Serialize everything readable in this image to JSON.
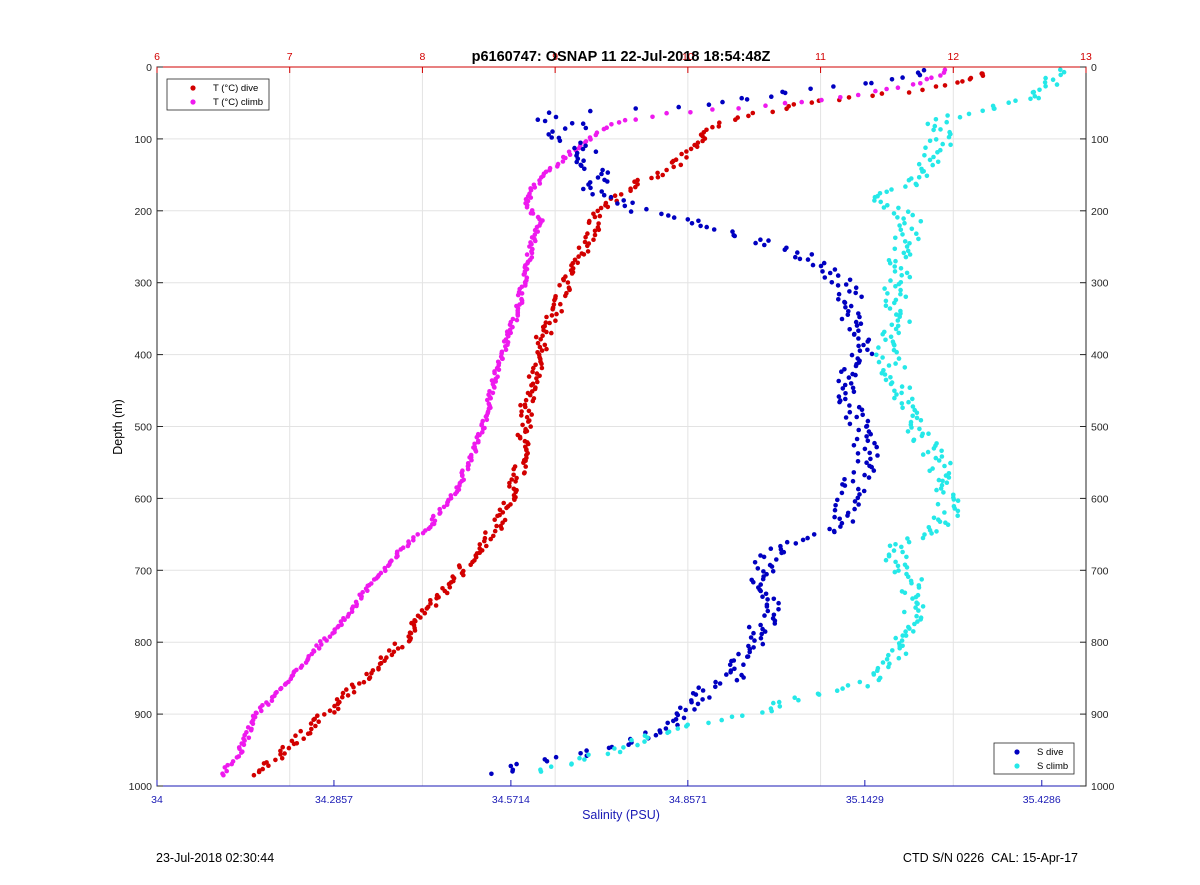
{
  "title": "p6160747: OSNAP 11 22-Jul-2018 18:54:48Z",
  "footer_left": "23-Jul-2018 02:30:44",
  "footer_right": "CTD S/N 0226  CAL: 15-Apr-17",
  "colors": {
    "t_dive": "#d20000",
    "t_climb": "#ee1aee",
    "s_dive": "#0000c0",
    "s_climb": "#25e8e8",
    "top_axis": "#d20000",
    "bottom_axis": "#1a1ab5"
  },
  "chart_data": {
    "type": "scatter",
    "title": "p6160747: OSNAP 11 22-Jul-2018 18:54:48Z",
    "ylabel": "Depth (m)",
    "ylim": [
      0,
      1000
    ],
    "y_reversed": true,
    "y_ticks": [
      "0",
      "100",
      "200",
      "300",
      "400",
      "500",
      "600",
      "700",
      "800",
      "900",
      "1000"
    ],
    "top_axis": {
      "label": "",
      "lim": [
        6,
        13
      ],
      "ticks": [
        "6",
        "7",
        "8",
        "9",
        "10",
        "11",
        "12",
        "13"
      ]
    },
    "bottom_axis": {
      "label": "Salinity (PSU)",
      "lim": [
        34,
        35.5
      ],
      "ticks": [
        "34",
        "34.2857",
        "34.5714",
        "34.8571",
        "35.1429",
        "35.4286"
      ]
    },
    "grid": true,
    "legends": [
      {
        "position": "top-left",
        "entries": [
          "T (°C) dive",
          "T (°C) climb"
        ]
      },
      {
        "position": "bottom-right",
        "entries": [
          "S dive",
          "S climb"
        ]
      }
    ],
    "series": [
      {
        "name": "T (°C) dive",
        "axis": "top",
        "points": [
          [
            12.27,
            8
          ],
          [
            12.2,
            12
          ],
          [
            12.1,
            17
          ],
          [
            11.95,
            25
          ],
          [
            11.75,
            32
          ],
          [
            11.5,
            37
          ],
          [
            11.2,
            42
          ],
          [
            10.9,
            50
          ],
          [
            10.7,
            58
          ],
          [
            10.45,
            68
          ],
          [
            10.25,
            78
          ],
          [
            10.15,
            88
          ],
          [
            10.1,
            97
          ],
          [
            10.05,
            108
          ],
          [
            9.98,
            118
          ],
          [
            9.95,
            128
          ],
          [
            9.88,
            140
          ],
          [
            9.7,
            155
          ],
          [
            9.55,
            170
          ],
          [
            9.45,
            185
          ],
          [
            9.35,
            200
          ],
          [
            9.3,
            210
          ],
          [
            9.28,
            225
          ],
          [
            9.25,
            240
          ],
          [
            9.2,
            255
          ],
          [
            9.15,
            268
          ],
          [
            9.12,
            280
          ],
          [
            9.08,
            300
          ],
          [
            9.05,
            320
          ],
          [
            9.0,
            340
          ],
          [
            8.95,
            360
          ],
          [
            8.9,
            380
          ],
          [
            8.88,
            400
          ],
          [
            8.85,
            420
          ],
          [
            8.82,
            440
          ],
          [
            8.8,
            460
          ],
          [
            8.78,
            480
          ],
          [
            8.77,
            500
          ],
          [
            8.76,
            520
          ],
          [
            8.75,
            540
          ],
          [
            8.73,
            560
          ],
          [
            8.7,
            580
          ],
          [
            8.67,
            600
          ],
          [
            8.62,
            620
          ],
          [
            8.56,
            640
          ],
          [
            8.47,
            660
          ],
          [
            8.38,
            680
          ],
          [
            8.3,
            700
          ],
          [
            8.2,
            720
          ],
          [
            8.1,
            740
          ],
          [
            8.02,
            760
          ],
          [
            7.93,
            780
          ],
          [
            7.85,
            800
          ],
          [
            7.72,
            820
          ],
          [
            7.62,
            840
          ],
          [
            7.5,
            860
          ],
          [
            7.4,
            880
          ],
          [
            7.27,
            900
          ],
          [
            7.15,
            920
          ],
          [
            7.02,
            940
          ],
          [
            6.9,
            960
          ],
          [
            6.8,
            975
          ],
          [
            6.73,
            985
          ]
        ]
      },
      {
        "name": "T (°C) climb",
        "axis": "top",
        "points": [
          [
            11.95,
            5
          ],
          [
            11.85,
            15
          ],
          [
            11.7,
            25
          ],
          [
            11.4,
            35
          ],
          [
            11.0,
            45
          ],
          [
            10.6,
            55
          ],
          [
            10.2,
            60
          ],
          [
            9.85,
            65
          ],
          [
            9.6,
            72
          ],
          [
            9.42,
            80
          ],
          [
            9.32,
            90
          ],
          [
            9.25,
            100
          ],
          [
            9.17,
            112
          ],
          [
            9.08,
            125
          ],
          [
            8.98,
            140
          ],
          [
            8.9,
            155
          ],
          [
            8.83,
            170
          ],
          [
            8.78,
            190
          ],
          [
            8.85,
            205
          ],
          [
            8.9,
            218
          ],
          [
            8.85,
            230
          ],
          [
            8.82,
            250
          ],
          [
            8.8,
            270
          ],
          [
            8.78,
            290
          ],
          [
            8.75,
            310
          ],
          [
            8.73,
            330
          ],
          [
            8.7,
            350
          ],
          [
            8.65,
            370
          ],
          [
            8.62,
            390
          ],
          [
            8.58,
            410
          ],
          [
            8.55,
            430
          ],
          [
            8.52,
            450
          ],
          [
            8.5,
            470
          ],
          [
            8.47,
            490
          ],
          [
            8.44,
            510
          ],
          [
            8.4,
            530
          ],
          [
            8.35,
            550
          ],
          [
            8.3,
            570
          ],
          [
            8.25,
            590
          ],
          [
            8.18,
            610
          ],
          [
            8.1,
            625
          ],
          [
            8.05,
            640
          ],
          [
            7.9,
            660
          ],
          [
            7.8,
            680
          ],
          [
            7.72,
            700
          ],
          [
            7.6,
            720
          ],
          [
            7.52,
            740
          ],
          [
            7.45,
            760
          ],
          [
            7.35,
            780
          ],
          [
            7.25,
            800
          ],
          [
            7.15,
            820
          ],
          [
            7.05,
            840
          ],
          [
            6.95,
            860
          ],
          [
            6.85,
            880
          ],
          [
            6.75,
            900
          ],
          [
            6.7,
            920
          ],
          [
            6.65,
            940
          ],
          [
            6.62,
            955
          ],
          [
            6.58,
            965
          ],
          [
            6.53,
            975
          ],
          [
            6.5,
            985
          ]
        ]
      },
      {
        "name": "S dive",
        "axis": "bottom",
        "points": [
          [
            35.24,
            5
          ],
          [
            35.22,
            12
          ],
          [
            35.2,
            18
          ],
          [
            35.05,
            30
          ],
          [
            34.98,
            40
          ],
          [
            34.92,
            48
          ],
          [
            34.78,
            58
          ],
          [
            34.65,
            65
          ],
          [
            34.6,
            72
          ],
          [
            34.7,
            80
          ],
          [
            34.62,
            90
          ],
          [
            34.66,
            100
          ],
          [
            34.7,
            115
          ],
          [
            34.68,
            130
          ],
          [
            34.73,
            150
          ],
          [
            34.7,
            170
          ],
          [
            34.75,
            185
          ],
          [
            34.78,
            200
          ],
          [
            34.86,
            215
          ],
          [
            34.92,
            230
          ],
          [
            34.98,
            245
          ],
          [
            35.04,
            258
          ],
          [
            35.07,
            275
          ],
          [
            35.1,
            295
          ],
          [
            35.12,
            320
          ],
          [
            35.12,
            345
          ],
          [
            35.13,
            370
          ],
          [
            35.14,
            395
          ],
          [
            35.12,
            420
          ],
          [
            35.11,
            445
          ],
          [
            35.12,
            470
          ],
          [
            35.13,
            495
          ],
          [
            35.14,
            520
          ],
          [
            35.15,
            545
          ],
          [
            35.13,
            570
          ],
          [
            35.12,
            595
          ],
          [
            35.11,
            620
          ],
          [
            35.1,
            645
          ],
          [
            35.02,
            660
          ],
          [
            34.99,
            680
          ],
          [
            34.98,
            700
          ],
          [
            34.98,
            720
          ],
          [
            34.99,
            745
          ],
          [
            34.98,
            770
          ],
          [
            34.97,
            790
          ],
          [
            34.95,
            810
          ],
          [
            34.94,
            830
          ],
          [
            34.93,
            850
          ],
          [
            34.88,
            870
          ],
          [
            34.86,
            890
          ],
          [
            34.84,
            910
          ],
          [
            34.79,
            930
          ],
          [
            34.73,
            945
          ],
          [
            34.68,
            958
          ],
          [
            34.6,
            970
          ],
          [
            34.54,
            983
          ]
        ]
      },
      {
        "name": "S climb",
        "axis": "bottom",
        "points": [
          [
            35.47,
            5
          ],
          [
            35.46,
            12
          ],
          [
            35.43,
            28
          ],
          [
            35.4,
            48
          ],
          [
            35.3,
            65
          ],
          [
            35.26,
            80
          ],
          [
            35.27,
            100
          ],
          [
            35.25,
            125
          ],
          [
            35.23,
            150
          ],
          [
            35.2,
            170
          ],
          [
            35.15,
            188
          ],
          [
            35.2,
            200
          ],
          [
            35.22,
            215
          ],
          [
            35.21,
            240
          ],
          [
            35.2,
            265
          ],
          [
            35.2,
            290
          ],
          [
            35.19,
            320
          ],
          [
            35.2,
            345
          ],
          [
            35.19,
            370
          ],
          [
            35.18,
            400
          ],
          [
            35.19,
            425
          ],
          [
            35.2,
            450
          ],
          [
            35.21,
            475
          ],
          [
            35.22,
            500
          ],
          [
            35.24,
            520
          ],
          [
            35.26,
            545
          ],
          [
            35.27,
            570
          ],
          [
            35.27,
            595
          ],
          [
            35.28,
            620
          ],
          [
            35.26,
            640
          ],
          [
            35.2,
            660
          ],
          [
            35.19,
            680
          ],
          [
            35.21,
            700
          ],
          [
            35.22,
            725
          ],
          [
            35.23,
            750
          ],
          [
            35.22,
            775
          ],
          [
            35.21,
            795
          ],
          [
            35.2,
            815
          ],
          [
            35.18,
            840
          ],
          [
            35.12,
            865
          ],
          [
            35.03,
            880
          ],
          [
            34.98,
            895
          ],
          [
            34.92,
            905
          ],
          [
            34.86,
            915
          ],
          [
            34.8,
            930
          ],
          [
            34.76,
            945
          ],
          [
            34.7,
            958
          ],
          [
            34.66,
            968
          ],
          [
            34.62,
            980
          ]
        ]
      }
    ]
  }
}
